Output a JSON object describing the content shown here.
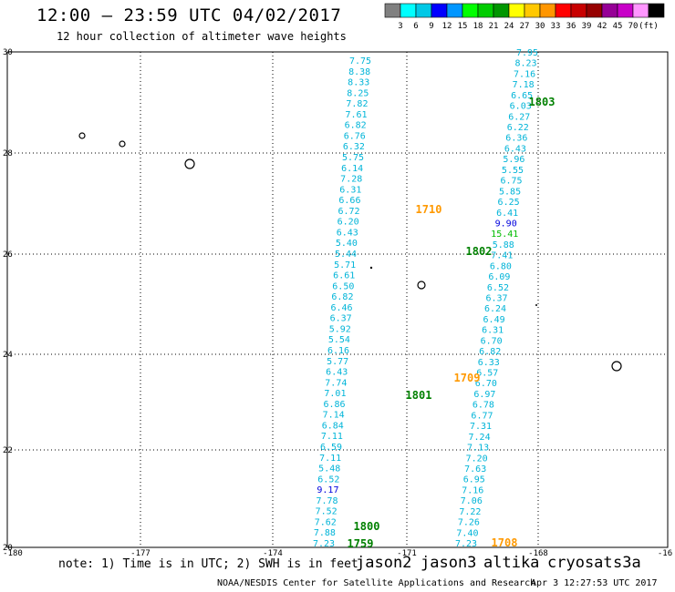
{
  "title": "12:00 — 23:59 UTC 04/02/2017",
  "subtitle": "12 hour collection of altimeter wave heights",
  "colorbar": {
    "colors": [
      "#808080",
      "#00ffff",
      "#00c8e6",
      "#0000ff",
      "#0096ff",
      "#00ff00",
      "#00cc00",
      "#009600",
      "#ffff00",
      "#ffc800",
      "#ff9600",
      "#ff0000",
      "#c80000",
      "#960000",
      "#960096",
      "#c800c8",
      "#ff96ff",
      "#000000"
    ],
    "labels": [
      "3",
      "6",
      "9",
      "12",
      "15",
      "18",
      "21",
      "24",
      "27",
      "30",
      "33",
      "36",
      "39",
      "42",
      "45",
      "70",
      "(ft)"
    ]
  },
  "axes": {
    "lat_labels": [
      "30",
      "28",
      "26",
      "24",
      "22",
      "20"
    ],
    "lon_labels": [
      "-180",
      "-177",
      "-174",
      "-171",
      "-168",
      "-16"
    ]
  },
  "passes": [
    {
      "label": "1803",
      "color": "#008000"
    },
    {
      "label": "1710",
      "color": "#ff9900"
    },
    {
      "label": "1802",
      "color": "#008000"
    },
    {
      "label": "1709",
      "color": "#ff9900"
    },
    {
      "label": "1801",
      "color": "#008000"
    },
    {
      "label": "1800",
      "color": "#008000"
    },
    {
      "label": "1759",
      "color": "#008000"
    },
    {
      "label": "1708",
      "color": "#ff9900"
    }
  ],
  "track_a": [
    "7.75",
    "8.38",
    "8.33",
    "8.25",
    "7.82",
    "7.61",
    "6.82",
    "6.76",
    "6.32",
    "5.75",
    "6.14",
    "7.28",
    "6.31",
    "6.66",
    "6.72",
    "6.20",
    "6.43",
    "5.40",
    "5.44",
    "5.71",
    "6.61",
    "6.50",
    "6.82",
    "6.46",
    "6.37",
    "5.92",
    "5.54",
    "6.16",
    "5.77",
    "6.43",
    "7.74",
    "7.01",
    "6.86",
    "7.14",
    "6.84",
    "7.11",
    "6.59",
    "7.11",
    "5.48",
    "6.52",
    "9.17",
    "7.78",
    "7.52",
    "7.62",
    "7.88",
    "7.23"
  ],
  "track_b": [
    "7.95",
    "8.23",
    "7.16",
    "7.18",
    "6.65",
    "6.03",
    "6.27",
    "6.22",
    "6.36",
    "6.43",
    "5.96",
    "5.55",
    "6.75",
    "5.85",
    "6.25",
    "6.41",
    "9.90",
    "15.41",
    "5.88",
    "7.41",
    "6.80",
    "6.09",
    "6.52",
    "6.37",
    "6.24",
    "6.49",
    "6.31",
    "6.70",
    "6.82",
    "6.33",
    "6.57",
    "6.70",
    "6.97",
    "6.78",
    "6.77",
    "7.31",
    "7.24",
    "7.13",
    "7.20",
    "7.63",
    "6.95",
    "7.16",
    "7.06",
    "7.22",
    "7.26",
    "7.40",
    "7.23"
  ],
  "footer": {
    "note": "note: 1) Time is in UTC; 2) SWH is in feet",
    "satellites": [
      {
        "name": "jason2",
        "color": "#0000cc"
      },
      {
        "name": "jason3",
        "color": "#00a000"
      },
      {
        "name": "altika",
        "color": "#ff9900"
      },
      {
        "name": "cryosat",
        "color": "#cc0000"
      },
      {
        "name": "s3a",
        "color": "#990000"
      }
    ],
    "credit": "NOAA/NESDIS Center for Satellite Applications and Research",
    "timestamp": "Apr  3 12:27:53 UTC 2017"
  }
}
